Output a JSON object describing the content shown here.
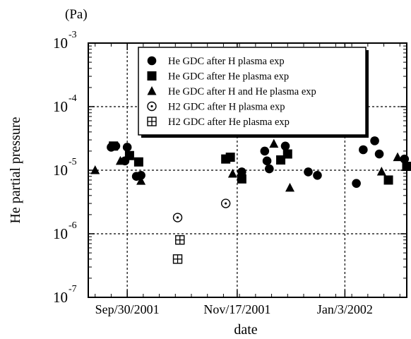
{
  "chart_data": {
    "type": "scatter",
    "title": "",
    "unit_label": "(Pa)",
    "xlabel": "date",
    "ylabel": "He partial pressure",
    "x_scale": "date",
    "y_scale": "log",
    "xlim": [
      "2001-09-13",
      "2002-01-30"
    ],
    "ylim": [
      1e-07,
      0.001
    ],
    "x_ticks": [
      {
        "date": "2001-09-30",
        "label": "Sep/30/2001"
      },
      {
        "date": "2001-11-17",
        "label": "Nov/17/2001"
      },
      {
        "date": "2002-01-03",
        "label": "Jan/3/2002"
      }
    ],
    "y_ticks": [
      {
        "value": 0.001,
        "base": "10",
        "exp": "-3"
      },
      {
        "value": 0.0001,
        "base": "10",
        "exp": "-4"
      },
      {
        "value": 1e-05,
        "base": "10",
        "exp": "-5"
      },
      {
        "value": 1e-06,
        "base": "10",
        "exp": "-6"
      },
      {
        "value": 1e-07,
        "base": "10",
        "exp": "-7"
      }
    ],
    "grid": "dashed, at major ticks",
    "legend_position": "top-right",
    "series": [
      {
        "name": "He GDC after H plasma exp",
        "marker": "filled-circle",
        "points": [
          {
            "x": "2001-09-23",
            "y": 2.3e-05
          },
          {
            "x": "2001-09-25",
            "y": 2.4e-05
          },
          {
            "x": "2001-09-29",
            "y": 1.4e-05
          },
          {
            "x": "2001-09-30",
            "y": 2.3e-05
          },
          {
            "x": "2001-10-04",
            "y": 8e-06
          },
          {
            "x": "2001-10-06",
            "y": 8.3e-06
          },
          {
            "x": "2001-11-19",
            "y": 9.4e-06
          },
          {
            "x": "2001-11-29",
            "y": 2e-05
          },
          {
            "x": "2001-11-30",
            "y": 1.4e-05
          },
          {
            "x": "2001-12-01",
            "y": 1.05e-05
          },
          {
            "x": "2001-12-08",
            "y": 2.4e-05
          },
          {
            "x": "2001-12-18",
            "y": 9.4e-06
          },
          {
            "x": "2001-12-22",
            "y": 8.3e-06
          },
          {
            "x": "2002-01-08",
            "y": 6.2e-06
          },
          {
            "x": "2002-01-11",
            "y": 2.1e-05
          },
          {
            "x": "2002-01-16",
            "y": 2.9e-05
          },
          {
            "x": "2002-01-18",
            "y": 1.8e-05
          },
          {
            "x": "2002-01-29",
            "y": 1.5e-05
          }
        ]
      },
      {
        "name": "He GDC after He plasma exp",
        "marker": "filled-square",
        "points": [
          {
            "x": "2001-09-24",
            "y": 2.4e-05
          },
          {
            "x": "2001-10-01",
            "y": 1.7e-05
          },
          {
            "x": "2001-10-05",
            "y": 1.35e-05
          },
          {
            "x": "2001-11-12",
            "y": 1.5e-05
          },
          {
            "x": "2001-11-14",
            "y": 1.6e-05
          },
          {
            "x": "2001-11-19",
            "y": 7.3e-06
          },
          {
            "x": "2001-12-06",
            "y": 1.45e-05
          },
          {
            "x": "2001-12-09",
            "y": 1.8e-05
          },
          {
            "x": "2002-01-22",
            "y": 7e-06
          },
          {
            "x": "2002-01-30",
            "y": 1.15e-05
          }
        ]
      },
      {
        "name": "He GDC after H and He plasma exp",
        "marker": "filled-triangle",
        "points": [
          {
            "x": "2001-09-16",
            "y": 1e-05
          },
          {
            "x": "2001-09-27",
            "y": 1.4e-05
          },
          {
            "x": "2001-10-06",
            "y": 6.8e-06
          },
          {
            "x": "2001-11-15",
            "y": 8.8e-06
          },
          {
            "x": "2001-12-03",
            "y": 2.6e-05
          },
          {
            "x": "2001-12-10",
            "y": 5.3e-06
          },
          {
            "x": "2002-01-19",
            "y": 9.5e-06
          },
          {
            "x": "2002-01-26",
            "y": 1.6e-05
          }
        ]
      },
      {
        "name": "H2 GDC after H plasma exp",
        "marker": "dotted-circle",
        "points": [
          {
            "x": "2001-10-22",
            "y": 1.8e-06
          },
          {
            "x": "2001-11-12",
            "y": 3e-06
          }
        ]
      },
      {
        "name": "H2 GDC after He plasma exp",
        "marker": "crossed-square",
        "points": [
          {
            "x": "2001-10-23",
            "y": 8e-07
          },
          {
            "x": "2001-10-22",
            "y": 4e-07
          }
        ]
      }
    ]
  }
}
